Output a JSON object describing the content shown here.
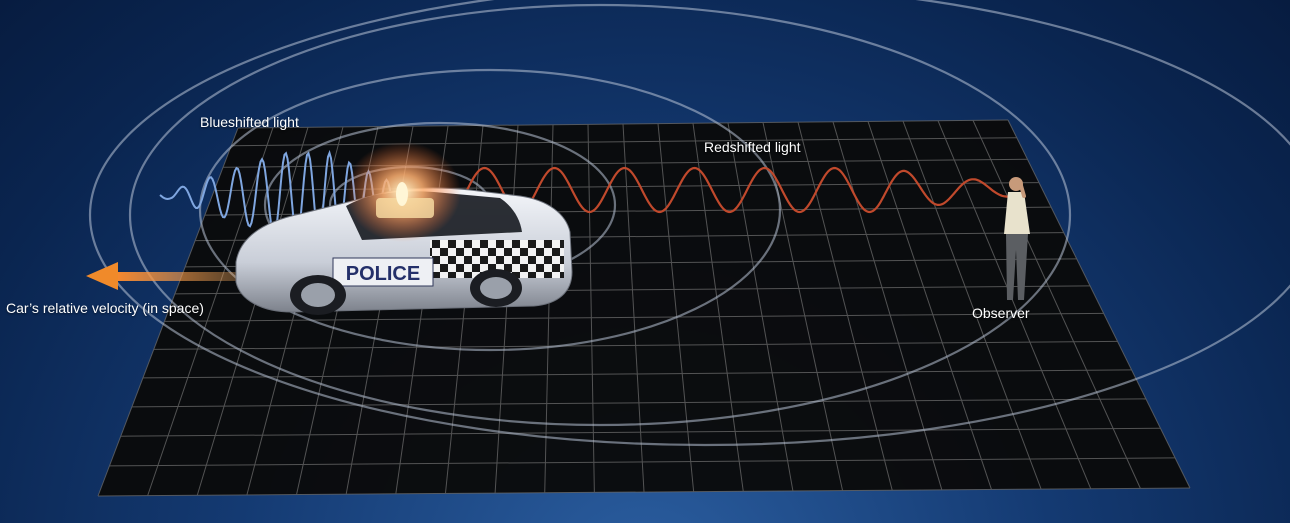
{
  "labels": {
    "blueshifted": "Blueshifted light",
    "redshifted": "Redshifted light",
    "velocity": "Car’s relative velocity (in space)",
    "observer": "Observer"
  },
  "car_text": "POLICE",
  "colors": {
    "background": "#0b2a57",
    "grid_plane": "#0a0a0a",
    "grid_line": "#6b6b6b",
    "wavefront": "#b9c4d6",
    "blue_wave": "#7fa6e0",
    "red_wave": "#c0492c",
    "velocity_arrow": "#f08a2a",
    "siren_glow": "#ffb070"
  }
}
